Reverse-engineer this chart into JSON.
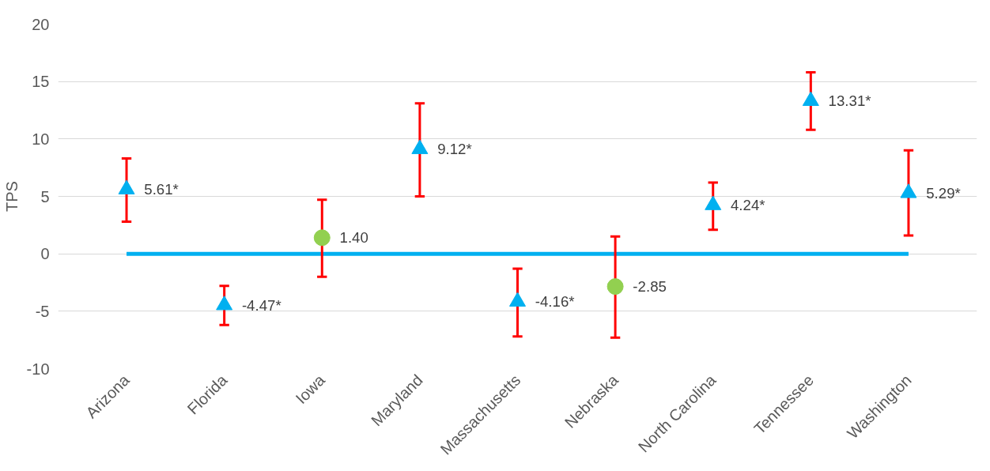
{
  "chart_data": {
    "type": "scatter",
    "ylabel": "TPS",
    "categories": [
      "Arizona",
      "Florida",
      "Iowa",
      "Maryland",
      "Massachusetts",
      "Nebraska",
      "North Carolina",
      "Tennessee",
      "Washington"
    ],
    "series": [
      {
        "marker": "triangle",
        "color": "#00b0f0",
        "values": [
          5.61,
          -4.47,
          null,
          9.12,
          -4.16,
          null,
          4.24,
          13.31,
          5.29
        ],
        "errors": [
          [
            2.8,
            8.3
          ],
          [
            -6.2,
            -2.8
          ],
          null,
          [
            5.0,
            13.1
          ],
          [
            -7.2,
            -1.3
          ],
          null,
          [
            2.1,
            6.2
          ],
          [
            10.8,
            15.8
          ],
          [
            1.6,
            9.0
          ]
        ],
        "value_labels": [
          "5.61*",
          "-4.47*",
          null,
          "9.12*",
          "-4.16*",
          null,
          "4.24*",
          "13.31*",
          "5.29*"
        ]
      },
      {
        "marker": "circle",
        "color": "#92d050",
        "values": [
          null,
          null,
          1.4,
          null,
          null,
          -2.85,
          null,
          null,
          null
        ],
        "errors": [
          null,
          null,
          [
            -2.0,
            4.7
          ],
          null,
          null,
          [
            -7.3,
            1.5
          ],
          null,
          null,
          null
        ],
        "value_labels": [
          null,
          null,
          "1.40",
          null,
          null,
          "-2.85",
          null,
          null,
          null
        ]
      }
    ],
    "ref_lines": [
      {
        "axis": "y",
        "value": 0,
        "color": "#00b0f0"
      }
    ],
    "ylim": [
      -10,
      20
    ],
    "yticks": [
      -10,
      -5,
      0,
      5,
      10,
      15,
      20
    ],
    "grid": "y"
  }
}
